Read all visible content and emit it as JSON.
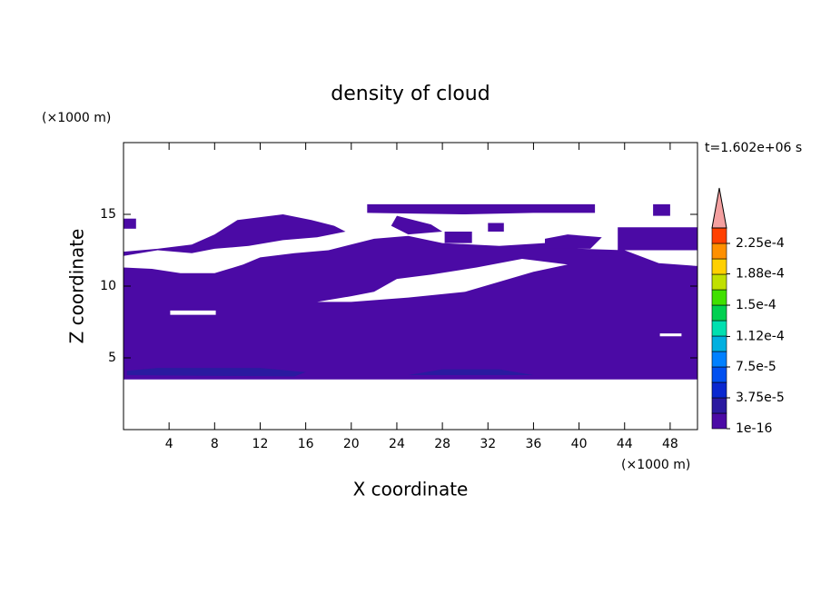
{
  "chart_data": {
    "type": "contour",
    "title": "density of cloud",
    "xlabel": "X coordinate",
    "ylabel": "Z coordinate",
    "xunit": "(×1000 m)",
    "yunit": "(×1000 m)",
    "time_label": "t=1.602e+06 s",
    "xlim": [
      0,
      50.4
    ],
    "ylim": [
      0,
      20
    ],
    "xticks": [
      4,
      8,
      12,
      16,
      20,
      24,
      28,
      32,
      36,
      40,
      44,
      48
    ],
    "yticks": [
      5,
      10,
      15
    ],
    "regions": [
      {
        "color": "#4b0aa5",
        "rings": [
          [
            [
              0,
              3.5
            ],
            [
              50.4,
              3.5
            ],
            [
              50.4,
              11.4
            ],
            [
              47,
              11.6
            ],
            [
              44,
              12.5
            ],
            [
              40,
              12.6
            ],
            [
              37,
              13
            ],
            [
              33,
              12.8
            ],
            [
              28,
              13
            ],
            [
              25,
              13.5
            ],
            [
              22,
              13.3
            ],
            [
              18,
              12.5
            ],
            [
              15,
              12.3
            ],
            [
              12,
              12
            ],
            [
              10.5,
              11.5
            ],
            [
              8,
              10.9
            ],
            [
              5,
              10.9
            ],
            [
              2.5,
              11.2
            ],
            [
              0,
              11.3
            ]
          ],
          [
            [
              17,
              8.9
            ],
            [
              20,
              9.3
            ],
            [
              22,
              9.6
            ],
            [
              24,
              10.5
            ],
            [
              27,
              10.8
            ],
            [
              31,
              11.3
            ],
            [
              35,
              11.9
            ],
            [
              39,
              11.5
            ],
            [
              36,
              11.0
            ],
            [
              30,
              9.6
            ],
            [
              25,
              9.2
            ],
            [
              20,
              8.9
            ]
          ],
          [
            [
              4.1,
              8.0
            ],
            [
              8.1,
              8.0
            ],
            [
              8.1,
              8.3
            ],
            [
              4.1,
              8.3
            ]
          ],
          [
            [
              47.1,
              6.5
            ],
            [
              49,
              6.5
            ],
            [
              49,
              6.7
            ],
            [
              47.1,
              6.7
            ]
          ]
        ]
      },
      {
        "color": "#4b0aa5",
        "rings": [
          [
            [
              0,
              12.4
            ],
            [
              3,
              12.6
            ],
            [
              6,
              12.9
            ],
            [
              8,
              13.6
            ],
            [
              10,
              14.6
            ],
            [
              14,
              15.0
            ],
            [
              16.5,
              14.6
            ],
            [
              18.5,
              14.2
            ],
            [
              19.5,
              13.8
            ],
            [
              17,
              13.4
            ],
            [
              14,
              13.2
            ],
            [
              11,
              12.8
            ],
            [
              8,
              12.6
            ],
            [
              6,
              12.3
            ],
            [
              3,
              12.5
            ],
            [
              0,
              12.1
            ]
          ]
        ]
      },
      {
        "color": "#4b0aa5",
        "rings": [
          [
            [
              0,
              14.0
            ],
            [
              1.1,
              14.0
            ],
            [
              1.1,
              14.7
            ],
            [
              0,
              14.7
            ]
          ]
        ]
      },
      {
        "color": "#4b0aa5",
        "rings": [
          [
            [
              21.4,
              15.1
            ],
            [
              30,
              15.0
            ],
            [
              36,
              15.1
            ],
            [
              41.4,
              15.1
            ],
            [
              41.4,
              15.7
            ],
            [
              21.4,
              15.7
            ]
          ]
        ]
      },
      {
        "color": "#4b0aa5",
        "rings": [
          [
            [
              24,
              14.9
            ],
            [
              27,
              14.3
            ],
            [
              28,
              13.8
            ],
            [
              25,
              13.6
            ],
            [
              23.5,
              14.2
            ]
          ]
        ]
      },
      {
        "color": "#4b0aa5",
        "rings": [
          [
            [
              28.2,
              13.0
            ],
            [
              30.6,
              13.0
            ],
            [
              30.6,
              13.8
            ],
            [
              28.2,
              13.8
            ]
          ]
        ]
      },
      {
        "color": "#4b0aa5",
        "rings": [
          [
            [
              32,
              13.8
            ],
            [
              33.4,
              13.8
            ],
            [
              33.4,
              14.4
            ],
            [
              32,
              14.4
            ]
          ]
        ]
      },
      {
        "color": "#4b0aa5",
        "rings": [
          [
            [
              37,
              12.6
            ],
            [
              41,
              12.6
            ],
            [
              42,
              13.4
            ],
            [
              39,
              13.6
            ],
            [
              37,
              13.3
            ]
          ]
        ]
      },
      {
        "color": "#4b0aa5",
        "rings": [
          [
            [
              43.4,
              12.5
            ],
            [
              50.4,
              12.5
            ],
            [
              50.4,
              14.1
            ],
            [
              43.4,
              14.1
            ]
          ]
        ]
      },
      {
        "color": "#4b0aa5",
        "rings": [
          [
            [
              46.5,
              14.9
            ],
            [
              48,
              14.9
            ],
            [
              48,
              15.7
            ],
            [
              46.5,
              15.7
            ]
          ]
        ]
      },
      {
        "color": "#2a1aa0",
        "rings": [
          [
            [
              0.3,
              3.8
            ],
            [
              15,
              3.7
            ],
            [
              16,
              4.0
            ],
            [
              12,
              4.3
            ],
            [
              3,
              4.3
            ],
            [
              0.3,
              4.1
            ]
          ]
        ]
      },
      {
        "color": "#2a1aa0",
        "rings": [
          [
            [
              25,
              3.8
            ],
            [
              36,
              3.8
            ],
            [
              33,
              4.2
            ],
            [
              28,
              4.2
            ]
          ]
        ]
      }
    ],
    "colorbar": {
      "levels": [
        1e-16,
        1.875e-05,
        3.75e-05,
        5.625e-05,
        7.5e-05,
        9.375e-05,
        0.0001125,
        0.00013125,
        0.00015,
        0.00016875,
        0.0001875,
        0.00020625,
        0.000225,
        0.00024375
      ],
      "colors": [
        "#4b0aa5",
        "#2a1aa0",
        "#0a28d0",
        "#0050f0",
        "#0080ff",
        "#00b0e0",
        "#00e0b0",
        "#00d050",
        "#40e000",
        "#c0e000",
        "#ffd000",
        "#ff9000",
        "#ff4000"
      ],
      "extend_color": "#f4a0a0",
      "ticks": [
        {
          "value": 1e-16,
          "label": "1e-16"
        },
        {
          "value": 3.75e-05,
          "label": "3.75e-5"
        },
        {
          "value": 7.5e-05,
          "label": "7.5e-5"
        },
        {
          "value": 0.000112,
          "label": "1.12e-4"
        },
        {
          "value": 0.00015,
          "label": "1.5e-4"
        },
        {
          "value": 0.000188,
          "label": "1.88e-4"
        },
        {
          "value": 0.000225,
          "label": "2.25e-4"
        }
      ]
    }
  }
}
